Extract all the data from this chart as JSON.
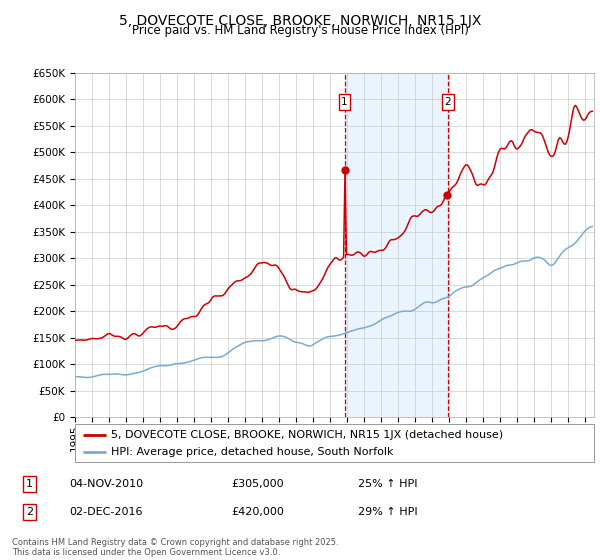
{
  "title": "5, DOVECOTE CLOSE, BROOKE, NORWICH, NR15 1JX",
  "subtitle": "Price paid vs. HM Land Registry's House Price Index (HPI)",
  "ylim": [
    0,
    650000
  ],
  "yticks": [
    0,
    50000,
    100000,
    150000,
    200000,
    250000,
    300000,
    350000,
    400000,
    450000,
    500000,
    550000,
    600000,
    650000
  ],
  "xlim_start": 1995.0,
  "xlim_end": 2025.5,
  "red_line_color": "#cc0000",
  "blue_line_color": "#7aabcf",
  "vline_color": "#cc0000",
  "shade_color": "#ddeeff",
  "purchase1_date": 2010.84,
  "purchase2_date": 2016.92,
  "purchase1_price": 305000,
  "purchase2_price": 420000,
  "legend1": "5, DOVECOTE CLOSE, BROOKE, NORWICH, NR15 1JX (detached house)",
  "legend2": "HPI: Average price, detached house, South Norfolk",
  "annotation1_box": "1",
  "annotation1_date": "04-NOV-2010",
  "annotation1_price": "£305,000",
  "annotation1_hpi": "25% ↑ HPI",
  "annotation2_box": "2",
  "annotation2_date": "02-DEC-2016",
  "annotation2_price": "£420,000",
  "annotation2_hpi": "29% ↑ HPI",
  "footer": "Contains HM Land Registry data © Crown copyright and database right 2025.\nThis data is licensed under the Open Government Licence v3.0.",
  "background_color": "#ffffff",
  "grid_color": "#cccccc",
  "title_fontsize": 10,
  "subtitle_fontsize": 8.5,
  "tick_fontsize": 7.5,
  "legend_fontsize": 8,
  "annotation_fontsize": 8,
  "footer_fontsize": 6
}
